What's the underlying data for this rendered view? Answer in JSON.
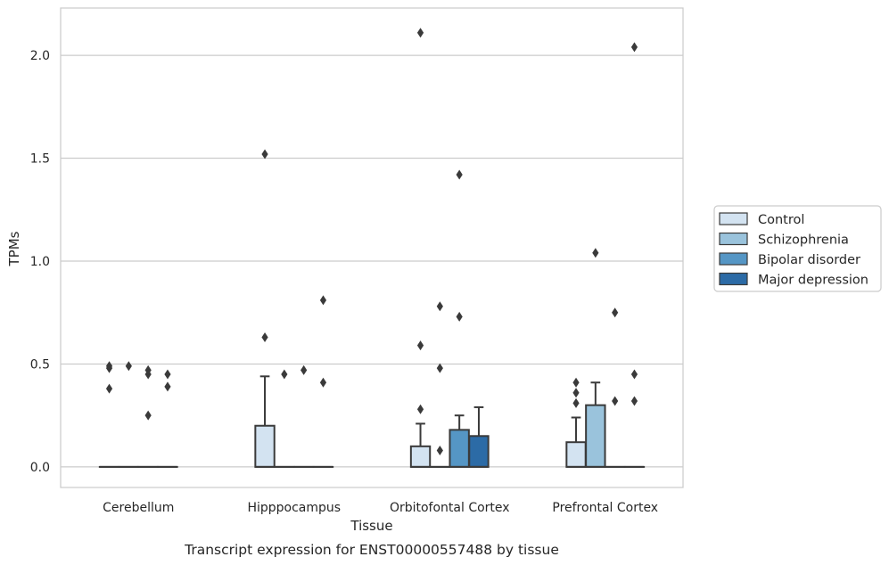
{
  "chart_data": {
    "type": "box",
    "caption": "Transcript expression for ENST00000557488 by tissue",
    "xlabel": "Tissue",
    "ylabel": "TPMs",
    "ylim": [
      -0.1,
      2.23
    ],
    "yticks": [
      "0.0",
      "0.5",
      "1.0",
      "1.5",
      "2.0"
    ],
    "ytick_values": [
      0.0,
      0.5,
      1.0,
      1.5,
      2.0
    ],
    "grid": "horizontal",
    "legend_position": "right",
    "categories": [
      "Cerebellum",
      "Hipppocampus",
      "Orbitofontal Cortex",
      "Prefrontal Cortex"
    ],
    "series": [
      {
        "name": "Control",
        "color": "#d3e3f1",
        "boxes": [
          {
            "q1": 0,
            "median": 0,
            "q3": 0,
            "whislo": 0,
            "whishi": 0,
            "fliers": [
              0.38,
              0.48,
              0.49
            ]
          },
          {
            "q1": 0,
            "median": 0,
            "q3": 0.2,
            "whislo": 0,
            "whishi": 0.44,
            "fliers": [
              0.63,
              1.52
            ]
          },
          {
            "q1": 0,
            "median": 0,
            "q3": 0.1,
            "whislo": 0,
            "whishi": 0.21,
            "fliers": [
              0.28,
              0.59,
              2.11
            ]
          },
          {
            "q1": 0,
            "median": 0,
            "q3": 0.12,
            "whislo": 0,
            "whishi": 0.24,
            "fliers": [
              0.31,
              0.36,
              0.41
            ]
          }
        ]
      },
      {
        "name": "Schizophrenia",
        "color": "#9ac3dc",
        "boxes": [
          {
            "q1": 0,
            "median": 0,
            "q3": 0,
            "whislo": 0,
            "whishi": 0,
            "fliers": [
              0.49
            ]
          },
          {
            "q1": 0,
            "median": 0,
            "q3": 0,
            "whislo": 0,
            "whishi": 0,
            "fliers": [
              0.45
            ]
          },
          {
            "q1": 0,
            "median": 0,
            "q3": 0,
            "whislo": 0,
            "whishi": 0,
            "fliers": [
              0.08,
              0.48,
              0.78
            ]
          },
          {
            "q1": 0,
            "median": 0,
            "q3": 0.3,
            "whislo": 0,
            "whishi": 0.41,
            "fliers": [
              1.04
            ]
          }
        ]
      },
      {
        "name": "Bipolar disorder",
        "color": "#5596c5",
        "boxes": [
          {
            "q1": 0,
            "median": 0,
            "q3": 0,
            "whislo": 0,
            "whishi": 0,
            "fliers": [
              0.25,
              0.45,
              0.47
            ]
          },
          {
            "q1": 0,
            "median": 0,
            "q3": 0,
            "whislo": 0,
            "whishi": 0,
            "fliers": [
              0.47
            ]
          },
          {
            "q1": 0,
            "median": 0,
            "q3": 0.18,
            "whislo": 0,
            "whishi": 0.25,
            "fliers": [
              0.73,
              1.42
            ]
          },
          {
            "q1": 0,
            "median": 0,
            "q3": 0,
            "whislo": 0,
            "whishi": 0,
            "fliers": [
              0.32,
              0.75
            ]
          }
        ]
      },
      {
        "name": "Major depression",
        "color": "#2c6ba6",
        "boxes": [
          {
            "q1": 0,
            "median": 0,
            "q3": 0,
            "whislo": 0,
            "whishi": 0,
            "fliers": [
              0.39,
              0.45
            ]
          },
          {
            "q1": 0,
            "median": 0,
            "q3": 0,
            "whislo": 0,
            "whishi": 0,
            "fliers": [
              0.41,
              0.81
            ]
          },
          {
            "q1": 0,
            "median": 0,
            "q3": 0.15,
            "whislo": 0,
            "whishi": 0.29,
            "fliers": []
          },
          {
            "q1": 0,
            "median": 0,
            "q3": 0,
            "whislo": 0,
            "whishi": 0,
            "fliers": [
              0.32,
              0.45,
              2.04
            ]
          }
        ]
      }
    ]
  }
}
